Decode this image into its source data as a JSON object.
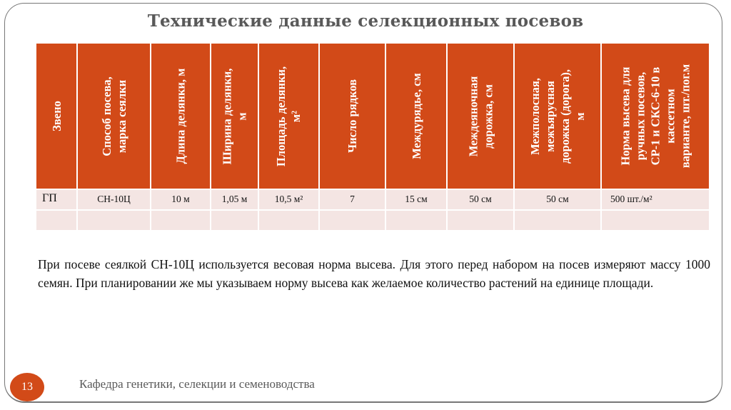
{
  "slide": {
    "title": "Технические данные селекционных посевов",
    "page_number": "13",
    "footer": "Кафедра генетики, селекции и семеноводства",
    "accent_color": "#d24a18",
    "row_fill_color": "#f4e5e3"
  },
  "table": {
    "headers": [
      {
        "lines": [
          "Звено"
        ]
      },
      {
        "lines": [
          "Способ посева,",
          "марка сеялки"
        ]
      },
      {
        "lines": [
          "Длина делянки, м"
        ]
      },
      {
        "lines": [
          "Ширина делянки,",
          "м"
        ]
      },
      {
        "lines": [
          "Площадь делянки,",
          "м²"
        ]
      },
      {
        "lines": [
          "Число рядков"
        ]
      },
      {
        "lines": [
          "Междурядье, см"
        ]
      },
      {
        "lines": [
          "Междеяночная",
          "дорожка, см"
        ]
      },
      {
        "lines": [
          "Межполосная,",
          "межъярусная",
          "дорожка (дорога),",
          "м"
        ]
      },
      {
        "lines": [
          "Норма высева для",
          "ручных посевов,",
          "СР-1 и СКС-6-10 в",
          "кассетном",
          "варианте, шт./пог.м"
        ]
      }
    ],
    "rows": [
      [
        "ГП",
        "СН-10Ц",
        "10 м",
        "1,05 м",
        "10,5 м²",
        "7",
        "15 см",
        "50 см",
        "50 см",
        "500 шт./м²"
      ],
      [
        "",
        "",
        "",
        "",
        "",
        "",
        "",
        "",
        "",
        ""
      ]
    ]
  },
  "paragraph": "При посеве сеялкой СН-10Ц используется весовая норма высева. Для этого перед набором на посев измеряют массу 1000 семян. При планировании же мы указываем норму высева как желаемое количество растений на единице площади."
}
